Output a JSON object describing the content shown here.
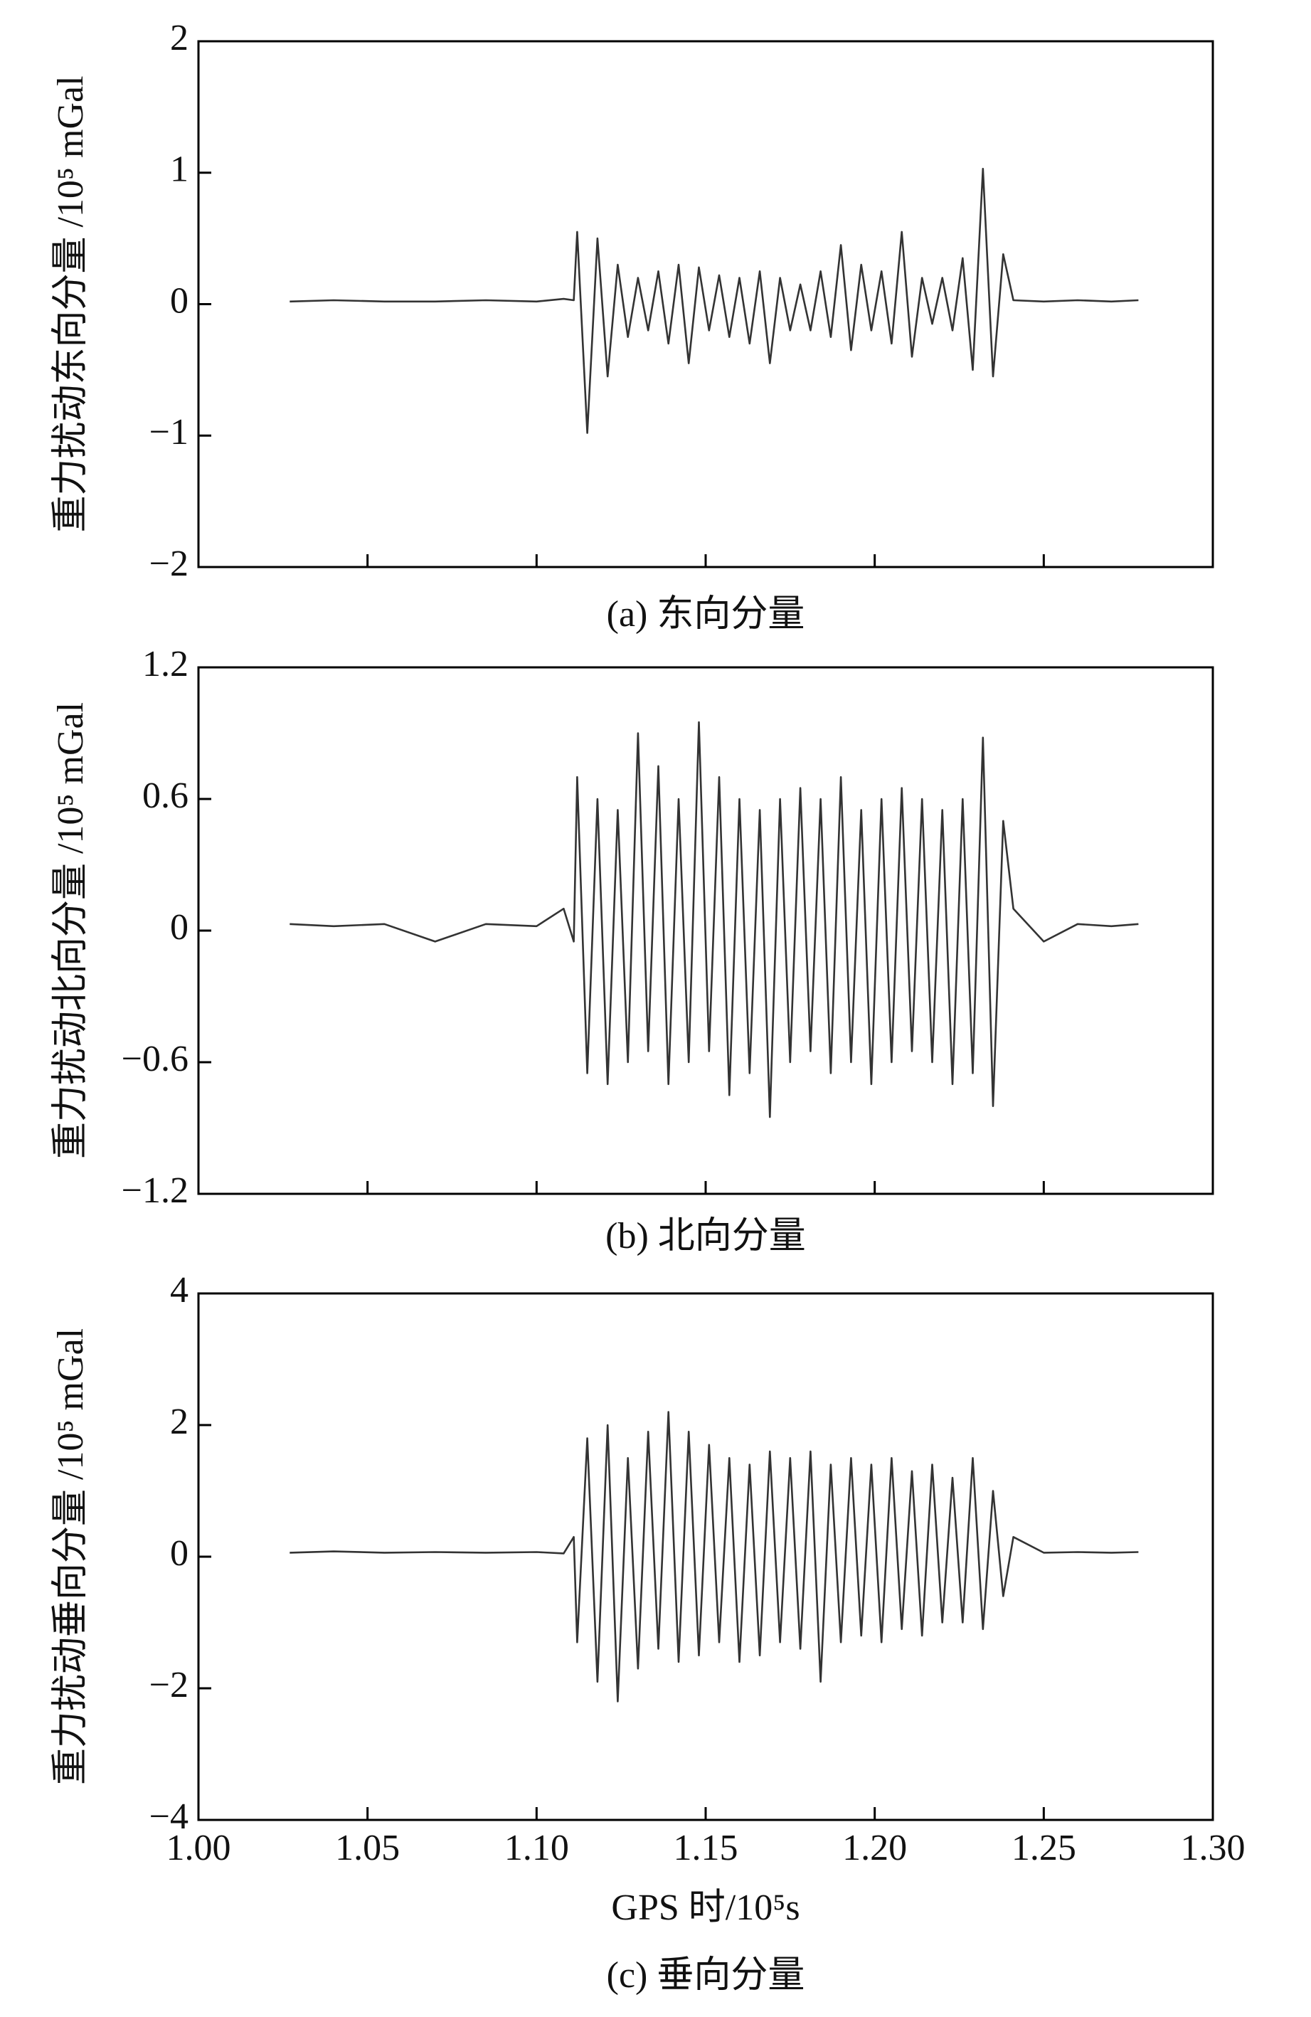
{
  "chart_data": [
    {
      "type": "line",
      "y_label": "重力扰动东向分量 /10⁵ mGal",
      "caption": "(a) 东向分量",
      "xlim": [
        1.0,
        1.3
      ],
      "xticks": [
        1.05,
        1.1,
        1.15,
        1.2,
        1.25
      ],
      "ylim": [
        -2,
        2
      ],
      "yticks": [
        {
          "value": -2,
          "label": "−2"
        },
        {
          "value": -1,
          "label": "−1"
        },
        0,
        1,
        2
      ],
      "color": "#333333",
      "x": [
        1.027,
        1.04,
        1.055,
        1.07,
        1.085,
        1.1,
        1.108,
        1.111,
        1.112,
        1.115,
        1.118,
        1.121,
        1.124,
        1.127,
        1.13,
        1.133,
        1.136,
        1.139,
        1.142,
        1.145,
        1.148,
        1.151,
        1.154,
        1.157,
        1.16,
        1.163,
        1.166,
        1.169,
        1.172,
        1.175,
        1.178,
        1.181,
        1.184,
        1.187,
        1.19,
        1.193,
        1.196,
        1.199,
        1.202,
        1.205,
        1.208,
        1.211,
        1.214,
        1.217,
        1.22,
        1.223,
        1.226,
        1.229,
        1.232,
        1.235,
        1.238,
        1.241,
        1.25,
        1.26,
        1.27,
        1.278
      ],
      "values": [
        0.02,
        0.03,
        0.02,
        0.02,
        0.03,
        0.02,
        0.04,
        0.03,
        0.55,
        -0.98,
        0.5,
        -0.55,
        0.3,
        -0.25,
        0.2,
        -0.2,
        0.25,
        -0.3,
        0.3,
        -0.45,
        0.28,
        -0.2,
        0.22,
        -0.25,
        0.2,
        -0.3,
        0.25,
        -0.45,
        0.2,
        -0.2,
        0.15,
        -0.2,
        0.25,
        -0.25,
        0.45,
        -0.35,
        0.3,
        -0.2,
        0.25,
        -0.3,
        0.55,
        -0.4,
        0.2,
        -0.15,
        0.2,
        -0.2,
        0.35,
        -0.5,
        1.03,
        -0.55,
        0.38,
        0.03,
        0.02,
        0.03,
        0.02,
        0.03
      ]
    },
    {
      "type": "line",
      "y_label": "重力扰动北向分量 /10⁵ mGal",
      "caption": "(b) 北向分量",
      "xlim": [
        1.0,
        1.3
      ],
      "xticks": [
        1.05,
        1.1,
        1.15,
        1.2,
        1.25
      ],
      "ylim": [
        -1.2,
        1.2
      ],
      "yticks": [
        {
          "value": -1.2,
          "label": "−1.2"
        },
        {
          "value": -0.6,
          "label": "−0.6"
        },
        0,
        0.6,
        1.2
      ],
      "color": "#333333",
      "x": [
        1.027,
        1.04,
        1.055,
        1.07,
        1.085,
        1.1,
        1.108,
        1.111,
        1.112,
        1.115,
        1.118,
        1.121,
        1.124,
        1.127,
        1.13,
        1.133,
        1.136,
        1.139,
        1.142,
        1.145,
        1.148,
        1.151,
        1.154,
        1.157,
        1.16,
        1.163,
        1.166,
        1.169,
        1.172,
        1.175,
        1.178,
        1.181,
        1.184,
        1.187,
        1.19,
        1.193,
        1.196,
        1.199,
        1.202,
        1.205,
        1.208,
        1.211,
        1.214,
        1.217,
        1.22,
        1.223,
        1.226,
        1.229,
        1.232,
        1.235,
        1.238,
        1.241,
        1.25,
        1.26,
        1.27,
        1.278
      ],
      "values": [
        0.03,
        0.02,
        0.03,
        -0.05,
        0.03,
        0.02,
        0.1,
        -0.05,
        0.7,
        -0.65,
        0.6,
        -0.7,
        0.55,
        -0.6,
        0.9,
        -0.55,
        0.75,
        -0.7,
        0.6,
        -0.6,
        0.95,
        -0.55,
        0.7,
        -0.75,
        0.6,
        -0.65,
        0.55,
        -0.85,
        0.6,
        -0.6,
        0.65,
        -0.55,
        0.6,
        -0.65,
        0.7,
        -0.6,
        0.55,
        -0.7,
        0.6,
        -0.6,
        0.65,
        -0.55,
        0.6,
        -0.6,
        0.55,
        -0.7,
        0.6,
        -0.65,
        0.88,
        -0.8,
        0.5,
        0.1,
        -0.05,
        0.03,
        0.02,
        0.03
      ]
    },
    {
      "type": "line",
      "y_label": "重力扰动垂向分量 /10⁵ mGal",
      "caption": "(c) 垂向分量",
      "x_label": "GPS 时/10⁵s",
      "xlim": [
        1.0,
        1.3
      ],
      "xticks": [
        {
          "value": 1.0,
          "label": "1.00"
        },
        {
          "value": 1.05,
          "label": "1.05"
        },
        {
          "value": 1.1,
          "label": "1.10"
        },
        {
          "value": 1.15,
          "label": "1.15"
        },
        {
          "value": 1.2,
          "label": "1.20"
        },
        {
          "value": 1.25,
          "label": "1.25"
        },
        {
          "value": 1.3,
          "label": "1.30"
        }
      ],
      "ylim": [
        -4,
        4
      ],
      "yticks": [
        {
          "value": -4,
          "label": "−4"
        },
        {
          "value": -2,
          "label": "−2"
        },
        0,
        2,
        4
      ],
      "color": "#333333",
      "x": [
        1.027,
        1.04,
        1.055,
        1.07,
        1.085,
        1.1,
        1.108,
        1.111,
        1.112,
        1.115,
        1.118,
        1.121,
        1.124,
        1.127,
        1.13,
        1.133,
        1.136,
        1.139,
        1.142,
        1.145,
        1.148,
        1.151,
        1.154,
        1.157,
        1.16,
        1.163,
        1.166,
        1.169,
        1.172,
        1.175,
        1.178,
        1.181,
        1.184,
        1.187,
        1.19,
        1.193,
        1.196,
        1.199,
        1.202,
        1.205,
        1.208,
        1.211,
        1.214,
        1.217,
        1.22,
        1.223,
        1.226,
        1.229,
        1.232,
        1.235,
        1.238,
        1.241,
        1.25,
        1.26,
        1.27,
        1.278
      ],
      "values": [
        0.06,
        0.08,
        0.06,
        0.07,
        0.06,
        0.07,
        0.05,
        0.3,
        -1.3,
        1.8,
        -1.9,
        2.0,
        -2.2,
        1.5,
        -1.7,
        1.9,
        -1.4,
        2.2,
        -1.6,
        1.9,
        -1.5,
        1.7,
        -1.3,
        1.5,
        -1.6,
        1.4,
        -1.5,
        1.6,
        -1.3,
        1.5,
        -1.4,
        1.6,
        -1.9,
        1.4,
        -1.3,
        1.5,
        -1.2,
        1.4,
        -1.3,
        1.5,
        -1.1,
        1.3,
        -1.2,
        1.4,
        -1.0,
        1.2,
        -1.0,
        1.5,
        -1.1,
        1.0,
        -0.6,
        0.3,
        0.06,
        0.07,
        0.06,
        0.07
      ]
    }
  ]
}
